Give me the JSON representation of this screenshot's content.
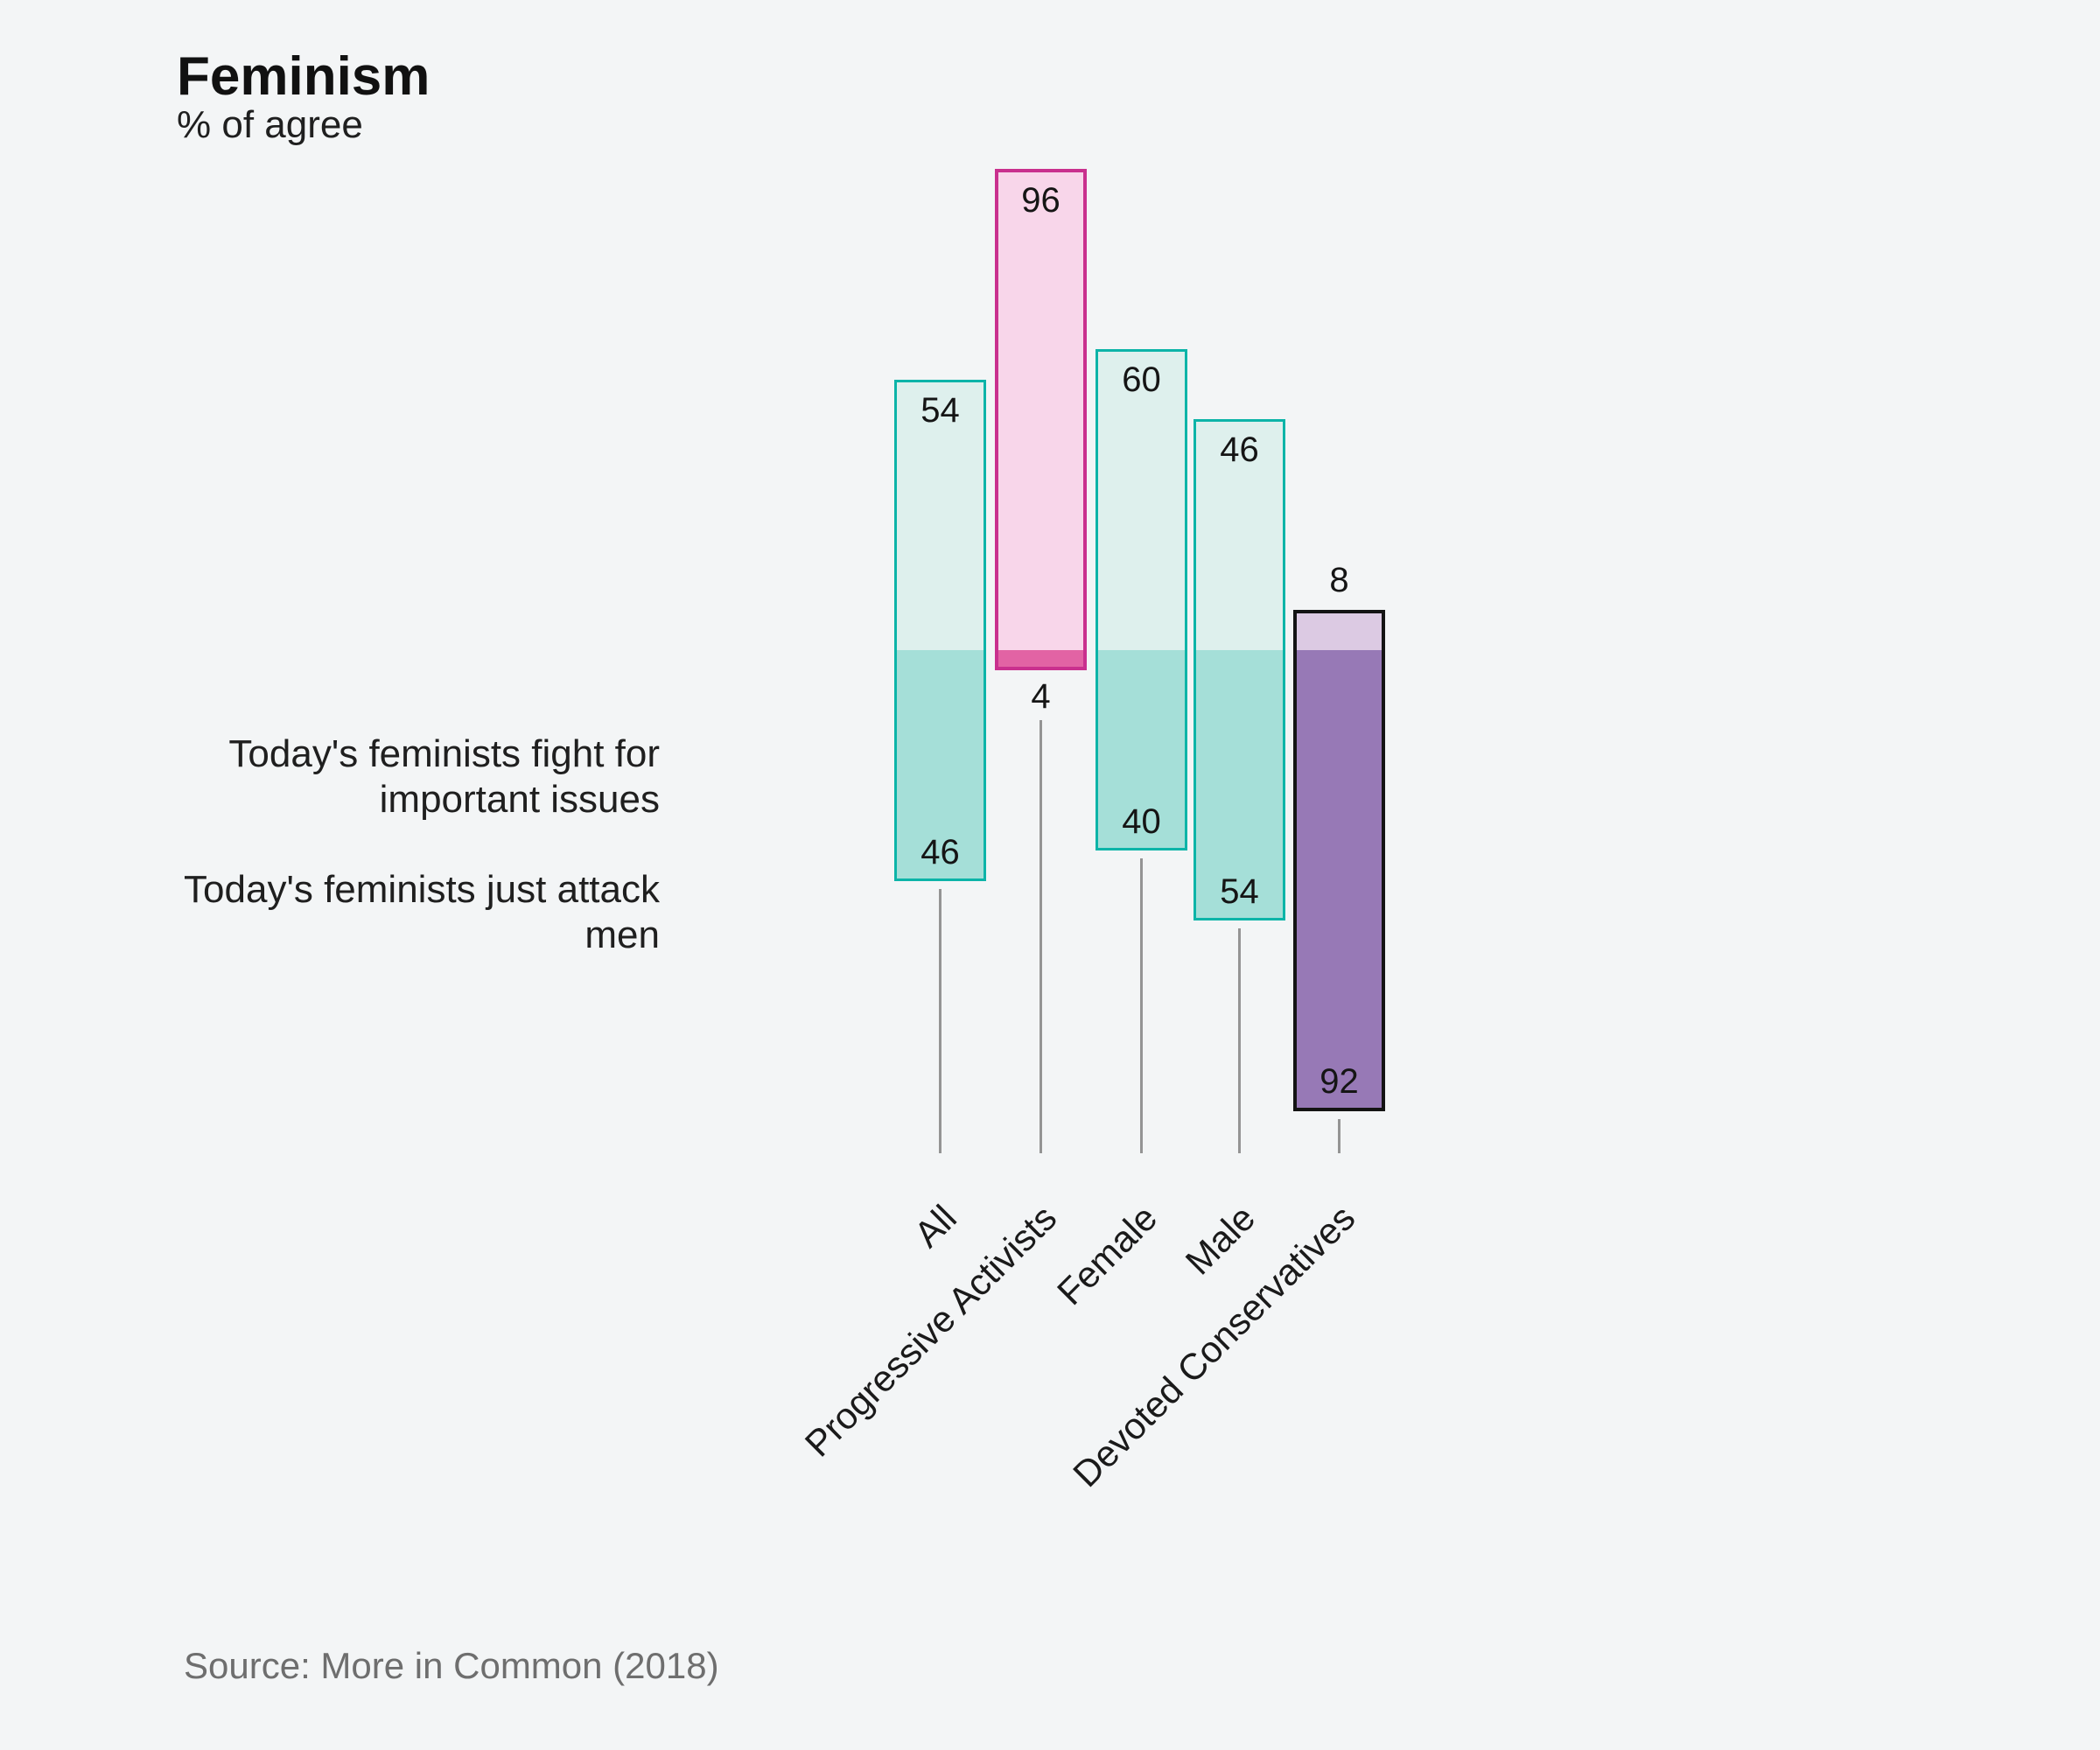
{
  "title": "Feminism",
  "subtitle": "% of agree",
  "statements": {
    "top_lines": [
      "Today's feminists fight for",
      "important issues"
    ],
    "bottom_lines": [
      "Today's feminists just attack",
      "men"
    ]
  },
  "source": "Source: More in Common (2018)",
  "colors": {
    "background": "#F3F5F6",
    "text": "#1A1A1A",
    "muted_text": "#6E6E6E",
    "leader_line": "#949494",
    "teal": {
      "border": "#0CB4A8",
      "light": "#DEF0ED",
      "dark": "#A5DFD8"
    },
    "pink": {
      "border": "#C9308E",
      "light": "#F8D6EA",
      "dark": "#E263A4"
    },
    "purple": {
      "border": "#141414",
      "light": "#DCCAE3",
      "dark": "#9779B6"
    }
  },
  "chart_data": {
    "type": "bar",
    "variant": "diverging-stacked",
    "title": "Feminism",
    "subtitle": "% of agree",
    "unit": "% of agree",
    "categories": [
      "All",
      "Progressive Activists",
      "Female",
      "Male",
      "Devoted Conservatives"
    ],
    "category_palette": [
      "teal",
      "pink",
      "teal",
      "teal",
      "purple"
    ],
    "series": [
      {
        "name": "Today's feminists fight for important issues",
        "direction": "up",
        "values": [
          54,
          96,
          60,
          46,
          8
        ]
      },
      {
        "name": "Today's feminists just attack men",
        "direction": "down",
        "values": [
          46,
          4,
          40,
          54,
          92
        ]
      }
    ],
    "value_labels_shown": true,
    "axis_shown": false,
    "grid": false,
    "legend_position": "left-text-annotations",
    "source": "Source: More in Common (2018)"
  }
}
